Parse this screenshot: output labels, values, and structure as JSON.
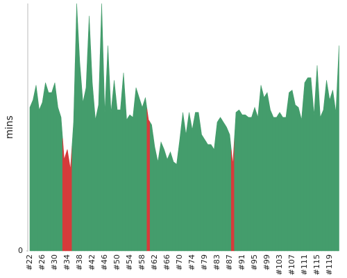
{
  "chart_data": {
    "type": "area",
    "y_label": "mins",
    "categories": [
      "#22",
      null,
      null,
      null,
      "#26",
      null,
      null,
      null,
      "#30",
      null,
      null,
      null,
      "#34",
      null,
      null,
      null,
      "#38",
      null,
      null,
      null,
      "#42",
      null,
      null,
      null,
      "#46",
      null,
      null,
      null,
      "#50",
      null,
      null,
      null,
      "#54",
      null,
      null,
      null,
      "#58",
      null,
      null,
      null,
      "#62",
      null,
      null,
      null,
      "#66",
      null,
      null,
      null,
      "#70",
      null,
      null,
      null,
      "#74",
      null,
      null,
      null,
      "#79",
      null,
      null,
      null,
      "#83",
      null,
      null,
      null,
      "#87",
      null,
      null,
      null,
      "#91",
      null,
      null,
      null,
      "#95",
      null,
      null,
      null,
      "#99",
      null,
      null,
      null,
      "#103",
      null,
      null,
      null,
      "#107",
      null,
      null,
      null,
      "#111",
      null,
      null,
      null,
      "#115",
      null,
      null,
      null,
      "#119",
      null,
      null,
      null
    ],
    "values": [
      58,
      61,
      67,
      57,
      60,
      68,
      64,
      64,
      68,
      58,
      54,
      37,
      41,
      33,
      52,
      100,
      76,
      60,
      66,
      95,
      68,
      53,
      59,
      100,
      56,
      83,
      56,
      69,
      57,
      57,
      72,
      53,
      55,
      54,
      66,
      62,
      58,
      62,
      53,
      51,
      42,
      36,
      44,
      41,
      37,
      40,
      36,
      35,
      45,
      56,
      47,
      56,
      49,
      56,
      56,
      47,
      45,
      43,
      43,
      41,
      52,
      54,
      52,
      50,
      47,
      35,
      56,
      57,
      55,
      55,
      54,
      54,
      58,
      54,
      67,
      62,
      64,
      57,
      54,
      54,
      56,
      54,
      54,
      64,
      65,
      59,
      58,
      53,
      68,
      70,
      70,
      55,
      75,
      54,
      57,
      69,
      61,
      65,
      56,
      83
    ],
    "color": "#449d6c",
    "colors": [
      "#449d6c",
      "#449d6c",
      "#449d6c",
      "#449d6c",
      "#449d6c",
      "#449d6c",
      "#449d6c",
      "#449d6c",
      "#449d6c",
      "#449d6c",
      "#449d6c",
      "#d63b3b",
      "#d63b3b",
      "#d63b3b",
      "#449d6c",
      "#449d6c",
      "#449d6c",
      "#449d6c",
      "#449d6c",
      "#449d6c",
      "#449d6c",
      "#449d6c",
      "#449d6c",
      "#449d6c",
      "#449d6c",
      "#449d6c",
      "#449d6c",
      "#449d6c",
      "#449d6c",
      "#449d6c",
      "#449d6c",
      "#449d6c",
      "#449d6c",
      "#449d6c",
      "#449d6c",
      "#449d6c",
      "#449d6c",
      "#449d6c",
      "#d63b3b",
      "#449d6c",
      "#449d6c",
      "#449d6c",
      "#449d6c",
      "#449d6c",
      "#449d6c",
      "#449d6c",
      "#449d6c",
      "#449d6c",
      "#449d6c",
      "#449d6c",
      "#449d6c",
      "#449d6c",
      "#449d6c",
      "#449d6c",
      "#449d6c",
      "#449d6c",
      "#449d6c",
      "#449d6c",
      "#449d6c",
      "#449d6c",
      "#449d6c",
      "#449d6c",
      "#449d6c",
      "#449d6c",
      "#449d6c",
      "#d63b3b",
      "#449d6c",
      "#449d6c",
      "#449d6c",
      "#449d6c",
      "#449d6c",
      "#449d6c",
      "#449d6c",
      "#449d6c",
      "#449d6c",
      "#449d6c",
      "#449d6c",
      "#449d6c",
      "#449d6c",
      "#449d6c",
      "#449d6c",
      "#449d6c",
      "#449d6c",
      "#449d6c",
      "#449d6c",
      "#449d6c",
      "#449d6c",
      "#449d6c",
      "#449d6c",
      "#449d6c",
      "#449d6c",
      "#449d6c",
      "#449d6c",
      "#449d6c",
      "#449d6c",
      "#449d6c",
      "#449d6c",
      "#449d6c",
      "#449d6c",
      "#449d6c"
    ],
    "ylim": [
      0,
      100
    ],
    "yticks": [
      0
    ],
    "grid": false
  }
}
